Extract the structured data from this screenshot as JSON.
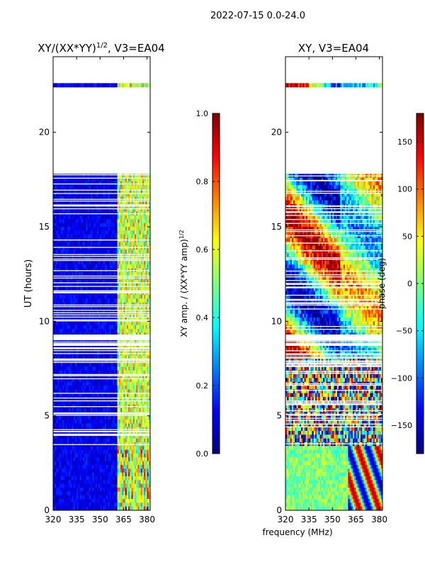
{
  "suptitle": "2022-07-15 0.0-24.0",
  "shared_xlabel": "frequency (MHz)",
  "colors": {
    "frame": "#000000",
    "gap": "#ffffff"
  },
  "chart_data": [
    {
      "type": "heatmap",
      "title": "XY/(XX*YY)",
      "title_sup": "1/2",
      "title_suffix": ", V3=EA04",
      "xlabel": "",
      "ylabel": "UT (hours)",
      "xlim": [
        320,
        382
      ],
      "ylim": [
        0,
        24
      ],
      "xticks": [
        320,
        335,
        350,
        365,
        380
      ],
      "yticks": [
        0,
        5,
        10,
        15,
        20
      ],
      "colorbar": {
        "label": "XY amp. / (XX*YY amp)",
        "label_sup": "1/2",
        "range": [
          0.0,
          1.0
        ],
        "ticks": [
          0.0,
          0.2,
          0.4,
          0.6,
          0.8,
          1.0
        ],
        "tick_labels": [
          "0.0",
          "0.2",
          "0.4",
          "0.6",
          "0.8",
          "1.0"
        ],
        "colormap": "jet"
      },
      "data_hours": [
        [
          0,
          3.4
        ],
        [
          3.4,
          8.0
        ],
        [
          8.0,
          17.8
        ],
        [
          22.4,
          22.5
        ]
      ],
      "gap_hours": [
        [
          17.8,
          22.4
        ],
        [
          22.5,
          24
        ]
      ],
      "band_channels_mhz": [
        [
          361,
          382
        ]
      ]
    },
    {
      "type": "heatmap",
      "title": "XY, V3=EA04",
      "xlabel": "",
      "ylabel": "phase (deg)",
      "xlim": [
        320,
        382
      ],
      "ylim": [
        0,
        24
      ],
      "xticks": [
        320,
        335,
        350,
        365,
        380
      ],
      "yticks": [
        0,
        5,
        10,
        15,
        20
      ],
      "colorbar": {
        "label": "phase (deg)",
        "range": [
          -180,
          180
        ],
        "ticks": [
          -150,
          -100,
          -50,
          0,
          50,
          100,
          150
        ],
        "tick_labels": [
          "−150",
          "−100",
          "−50",
          "0",
          "50",
          "100",
          "150"
        ],
        "colormap": "jet"
      },
      "data_hours": [
        [
          0,
          3.4
        ],
        [
          3.4,
          8.0
        ],
        [
          8.0,
          17.8
        ],
        [
          22.4,
          22.5
        ]
      ],
      "gap_hours": [
        [
          17.8,
          22.4
        ],
        [
          22.5,
          24
        ]
      ]
    }
  ]
}
